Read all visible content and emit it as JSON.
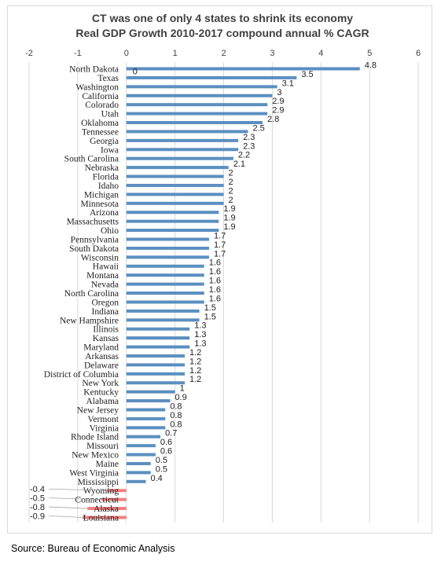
{
  "chart_data": {
    "type": "bar",
    "orientation": "horizontal",
    "title": "CT was one of only 4 states to shrink its economy",
    "subtitle": "Real GDP Growth 2010-2017 compound annual % CAGR",
    "xlim": [
      -2,
      6
    ],
    "x_ticks": [
      "-2",
      "-1",
      "0",
      "1",
      "2",
      "3",
      "4",
      "5",
      "6"
    ],
    "x_tick_values": [
      -2,
      -1,
      0,
      1,
      2,
      3,
      4,
      5,
      6
    ],
    "grid": true,
    "legend": "none",
    "categories": [
      "North Dakota",
      "Texas",
      "Washington",
      "California",
      "Colorado",
      "Utah",
      "Oklahoma",
      "Tennessee",
      "Georgia",
      "Iowa",
      "South Carolina",
      "Nebraska",
      "Florida",
      "Idaho",
      "Michigan",
      "Minnesota",
      "Arizona",
      "Massachusetts",
      "Ohio",
      "Pennsylvania",
      "South Dakota",
      "Wisconsin",
      "Hawaii",
      "Montana",
      "Nevada",
      "North Carolina",
      "Oregon",
      "Indiana",
      "New Hampshire",
      "Illinois",
      "Kansas",
      "Maryland",
      "Arkansas",
      "Delaware",
      "District of Columbia",
      "New York",
      "Kentucky",
      "Alabama",
      "New Jersey",
      "Vermont",
      "Virginia",
      "Rhode Island",
      "Missouri",
      "New Mexico",
      "Maine",
      "West Virginia",
      "Mississippi",
      "Wyoming",
      "Connecticut",
      "Alaska",
      "Louisiana"
    ],
    "values": [
      4.8,
      3.5,
      3.1,
      3,
      2.9,
      2.9,
      2.8,
      2.5,
      2.3,
      2.3,
      2.2,
      2.1,
      2,
      2,
      2,
      2,
      1.9,
      1.9,
      1.9,
      1.7,
      1.7,
      1.7,
      1.6,
      1.6,
      1.6,
      1.6,
      1.6,
      1.5,
      1.5,
      1.3,
      1.3,
      1.3,
      1.2,
      1.2,
      1.2,
      1.2,
      1,
      0.9,
      0.8,
      0.8,
      0.8,
      0.7,
      0.6,
      0.6,
      0.5,
      0.5,
      0.4,
      -0.4,
      -0.5,
      -0.8,
      -0.9
    ],
    "value_labels": [
      "4.8",
      "3.5",
      "3.1",
      "3",
      "2.9",
      "2.9",
      "2.8",
      "2.5",
      "2.3",
      "2.3",
      "2.2",
      "2.1",
      "2",
      "2",
      "2",
      "2",
      "1.9",
      "1.9",
      "1.9",
      "1.7",
      "1.7",
      "1.7",
      "1.6",
      "1.6",
      "1.6",
      "1.6",
      "1.6",
      "1.5",
      "1.5",
      "1.3",
      "1.3",
      "1.3",
      "1.2",
      "1.2",
      "1.2",
      "1.2",
      "1",
      "0.9",
      "0.8",
      "0.8",
      "0.8",
      "0.7",
      "0.6",
      "0.6",
      "0.5",
      "0.5",
      "0.4",
      "-0.4",
      "-0.5",
      "-0.8",
      "-0.9"
    ],
    "annotations": [
      {
        "text": "0"
      }
    ],
    "colors": {
      "positive": "#5b8fc0",
      "negative": "#f08080",
      "grid": "#d9d9d9",
      "leader": "#a6a6a6"
    }
  },
  "source": "Source: Bureau of Economic Analysis"
}
